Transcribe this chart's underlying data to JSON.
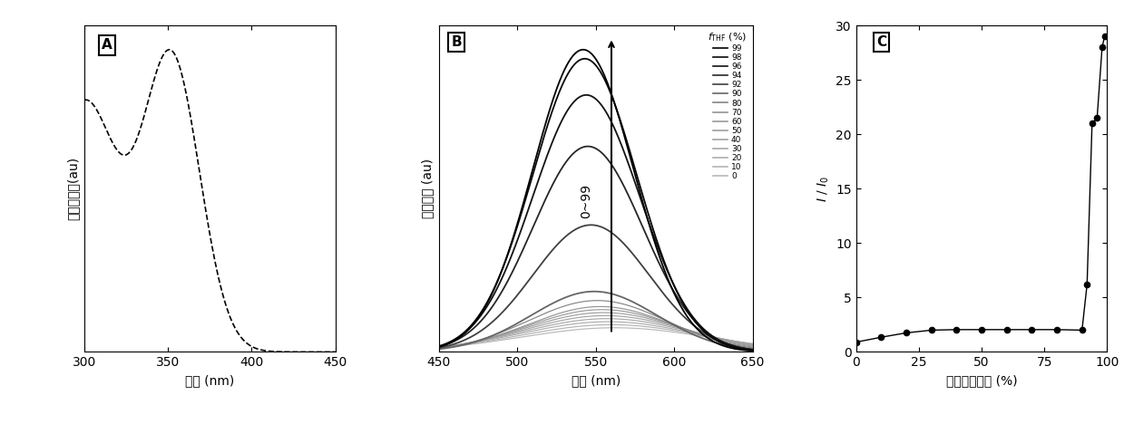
{
  "panel_A": {
    "label": "A",
    "xlabel": "波长 (nm)",
    "ylabel": "归一化吸收(au)",
    "xlim": [
      300,
      450
    ],
    "xticks": [
      300,
      350,
      400,
      450
    ]
  },
  "panel_B": {
    "label": "B",
    "xlabel": "波长 (nm)",
    "ylabel": "荧光强度 (au)",
    "xlim": [
      450,
      650
    ],
    "xticks": [
      450,
      500,
      550,
      600,
      650
    ],
    "legend_title": "$f_{\\mathrm{THF}}$ (%)",
    "arrow_text": "0~99",
    "fractions": [
      0,
      10,
      20,
      30,
      40,
      50,
      60,
      70,
      80,
      90,
      92,
      94,
      96,
      98,
      99
    ],
    "intensities": [
      0.08,
      0.09,
      0.1,
      0.11,
      0.12,
      0.13,
      0.14,
      0.15,
      0.17,
      0.2,
      0.42,
      0.68,
      0.85,
      0.97,
      1.0
    ],
    "peak_positions": [
      562,
      560,
      558,
      557,
      556,
      555,
      554,
      553,
      551,
      549,
      547,
      545,
      544,
      543,
      542
    ],
    "widths": [
      60,
      58,
      56,
      54,
      52,
      50,
      48,
      46,
      44,
      40,
      37,
      35,
      34,
      33,
      32
    ],
    "gray_levels": [
      0.72,
      0.7,
      0.68,
      0.66,
      0.64,
      0.62,
      0.6,
      0.58,
      0.52,
      0.4,
      0.25,
      0.15,
      0.07,
      0.03,
      0.0
    ],
    "legend_fracs": [
      "99",
      "98",
      "96",
      "94",
      "92",
      "90",
      "80",
      "70",
      "60",
      "50",
      "40",
      "30",
      "20",
      "10",
      "0"
    ],
    "legend_grays": [
      0.0,
      0.03,
      0.07,
      0.15,
      0.25,
      0.4,
      0.52,
      0.58,
      0.6,
      0.62,
      0.64,
      0.66,
      0.68,
      0.7,
      0.72
    ]
  },
  "panel_C": {
    "label": "C",
    "xlabel": "四氢吶喂含量 (%)",
    "ylabel": "$I$ / $I_0$",
    "xlim": [
      0,
      100
    ],
    "ylim": [
      0,
      30
    ],
    "yticks": [
      0,
      5,
      10,
      15,
      20,
      25,
      30
    ],
    "xticks": [
      0,
      25,
      50,
      75,
      100
    ],
    "x_data": [
      0,
      10,
      20,
      30,
      40,
      50,
      60,
      70,
      80,
      90,
      92,
      94,
      96,
      98,
      99
    ],
    "y_data": [
      0.9,
      1.35,
      1.75,
      2.0,
      2.05,
      2.05,
      2.05,
      2.05,
      2.05,
      2.0,
      6.2,
      21.0,
      21.5,
      28.0,
      29.0
    ]
  }
}
